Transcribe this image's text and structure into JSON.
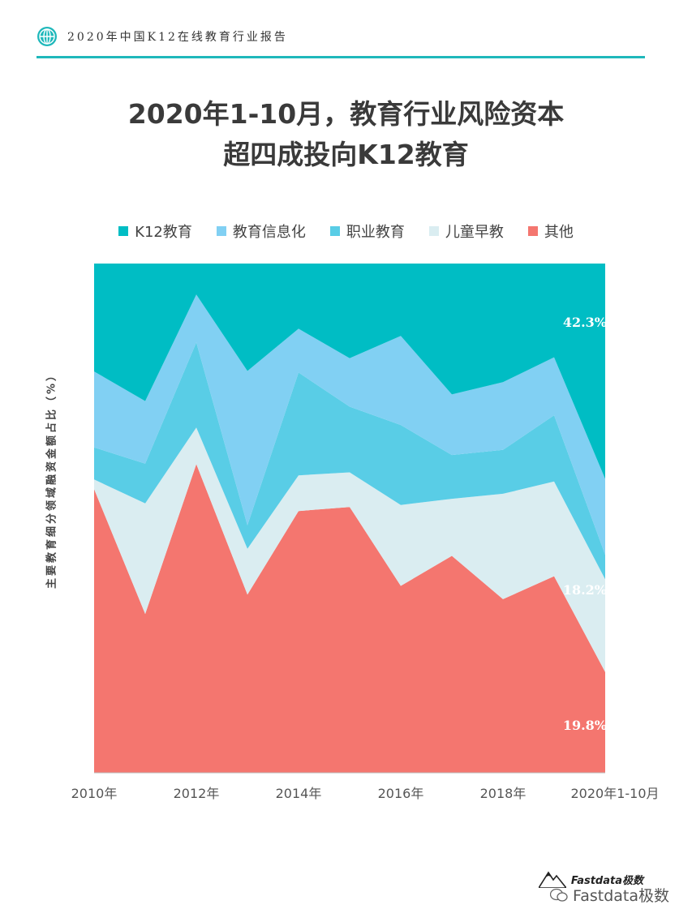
{
  "header": {
    "title": "2020年中国K12在线教育行业报告"
  },
  "title_line1": "2020年1-10月，教育行业风险资本",
  "title_line2": "超四成投向K12教育",
  "brand": {
    "logo_text": "Fastdata极数"
  },
  "watermark": "Fastdata极数",
  "colors": {
    "accent": "#1fb8bb",
    "k12": "#00bdc4",
    "info": "#81d0f3",
    "vocational": "#59cde6",
    "early": "#daedf1",
    "other": "#f4766f"
  },
  "chart_data": {
    "type": "area",
    "stacked": true,
    "normalized": true,
    "ylabel": "主要教育细分领域融资金额占比（%）",
    "x": [
      "2010年",
      "2011年",
      "2012年",
      "2013年",
      "2014年",
      "2015年",
      "2016年",
      "2017年",
      "2018年",
      "2019年",
      "2020年1-10月"
    ],
    "tick_labels": [
      "2010年",
      "2012年",
      "2014年",
      "2016年",
      "2018年",
      "2020年1-10月"
    ],
    "ylim": [
      0,
      100
    ],
    "legend_position": "top",
    "series": [
      {
        "name": "其他",
        "values": [
          55.7,
          31.2,
          60.6,
          35.0,
          51.4,
          52.2,
          36.7,
          42.6,
          34.1,
          38.6,
          19.8
        ]
      },
      {
        "name": "儿童早教",
        "values": [
          1.9,
          21.7,
          7.2,
          9.0,
          7.0,
          6.8,
          15.9,
          11.2,
          20.7,
          18.6,
          18.2
        ]
      },
      {
        "name": "职业教育",
        "values": [
          6.3,
          7.8,
          16.7,
          4.6,
          20.2,
          12.9,
          15.7,
          8.6,
          8.6,
          13.0,
          4.8
        ]
      },
      {
        "name": "教育信息化",
        "values": [
          14.9,
          12.3,
          9.4,
          30.3,
          8.6,
          9.5,
          17.5,
          11.9,
          13.3,
          11.4,
          14.9
        ]
      },
      {
        "name": "K12教育",
        "values": [
          21.2,
          27.0,
          6.1,
          21.1,
          12.8,
          18.6,
          14.2,
          25.7,
          23.3,
          18.4,
          42.3
        ]
      }
    ],
    "annotations": [
      {
        "series": "K12教育",
        "label": "42.3%"
      },
      {
        "series": "儿童早教",
        "label": "18.2%"
      },
      {
        "series": "其他",
        "label": "19.8%"
      }
    ]
  }
}
